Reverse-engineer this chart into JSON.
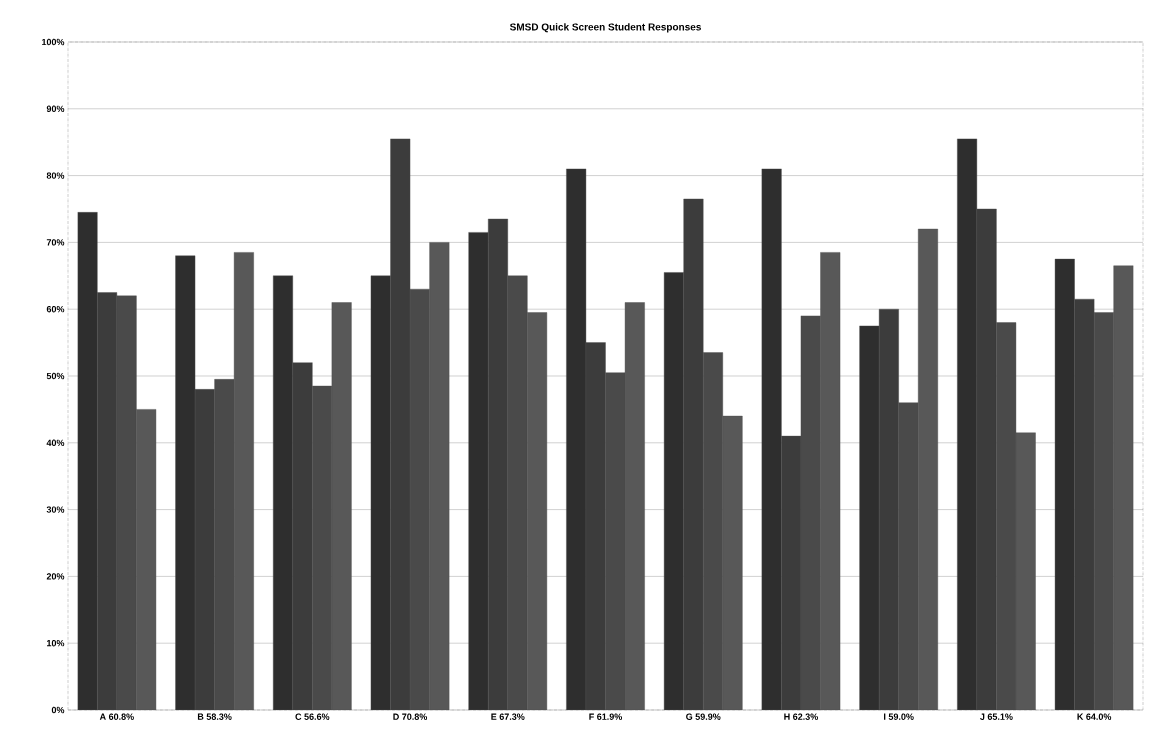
{
  "chart_data": {
    "type": "bar",
    "title": "SMSD Quick Screen Student Responses",
    "categories": [
      "A 60.8%",
      "B 58.3%",
      "C 56.6%",
      "D 70.8%",
      "E 67.3%",
      "F 61.9%",
      "G 59.9%",
      "H 62.3%",
      "I 59.0%",
      "J 65.1%",
      "K 64.0%"
    ],
    "series": [
      {
        "color": "#2e2e2e",
        "values": [
          74.5,
          68,
          65,
          65,
          71.5,
          81,
          65.5,
          81,
          57.5,
          85.5,
          67.5
        ]
      },
      {
        "color": "#3c3c3c",
        "values": [
          62.5,
          48,
          52,
          85.5,
          73.5,
          55,
          76.5,
          41,
          60,
          75,
          61.5
        ]
      },
      {
        "color": "#4a4a4a",
        "values": [
          62,
          49.5,
          48.5,
          63,
          65,
          50.5,
          53.5,
          59,
          46,
          58,
          59.5
        ]
      },
      {
        "color": "#585858",
        "values": [
          45,
          68.5,
          61,
          70,
          59.5,
          61,
          44,
          68.5,
          72,
          41.5,
          66.5
        ]
      }
    ],
    "ylim": [
      0,
      100
    ],
    "yticks": [
      {
        "value": 0,
        "label": "0%"
      },
      {
        "value": 10,
        "label": "10%"
      },
      {
        "value": 20,
        "label": "20%"
      },
      {
        "value": 30,
        "label": "30%"
      },
      {
        "value": 40,
        "label": "40%"
      },
      {
        "value": 50,
        "label": "50%"
      },
      {
        "value": 60,
        "label": "60%"
      },
      {
        "value": 70,
        "label": "70%"
      },
      {
        "value": 80,
        "label": "80%"
      },
      {
        "value": 90,
        "label": "90%"
      },
      {
        "value": 100,
        "label": "100%"
      }
    ],
    "grid": "y"
  }
}
